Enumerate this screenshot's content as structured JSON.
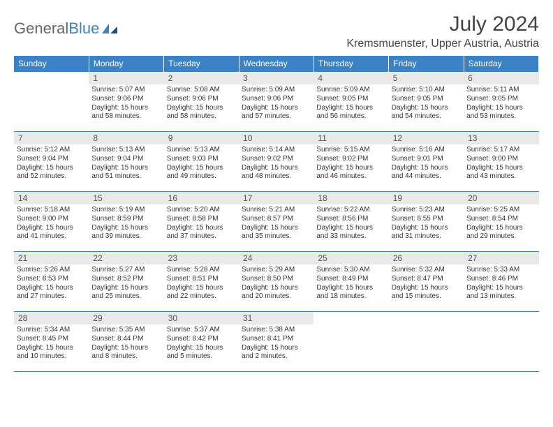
{
  "brand": {
    "part1": "General",
    "part2": "Blue",
    "accent": "#3b82c4"
  },
  "title": "July 2024",
  "location": "Kremsmuenster, Upper Austria, Austria",
  "header_bg": "#3b82c4",
  "daynum_bg": "#e9e9e9",
  "border_color": "#3b82c4",
  "weekdays": [
    "Sunday",
    "Monday",
    "Tuesday",
    "Wednesday",
    "Thursday",
    "Friday",
    "Saturday"
  ],
  "weeks": [
    [
      null,
      {
        "n": "1",
        "sr": "5:07 AM",
        "ss": "9:06 PM",
        "dl": "15 hours and 58 minutes."
      },
      {
        "n": "2",
        "sr": "5:08 AM",
        "ss": "9:06 PM",
        "dl": "15 hours and 58 minutes."
      },
      {
        "n": "3",
        "sr": "5:09 AM",
        "ss": "9:06 PM",
        "dl": "15 hours and 57 minutes."
      },
      {
        "n": "4",
        "sr": "5:09 AM",
        "ss": "9:05 PM",
        "dl": "15 hours and 56 minutes."
      },
      {
        "n": "5",
        "sr": "5:10 AM",
        "ss": "9:05 PM",
        "dl": "15 hours and 54 minutes."
      },
      {
        "n": "6",
        "sr": "5:11 AM",
        "ss": "9:05 PM",
        "dl": "15 hours and 53 minutes."
      }
    ],
    [
      {
        "n": "7",
        "sr": "5:12 AM",
        "ss": "9:04 PM",
        "dl": "15 hours and 52 minutes."
      },
      {
        "n": "8",
        "sr": "5:13 AM",
        "ss": "9:04 PM",
        "dl": "15 hours and 51 minutes."
      },
      {
        "n": "9",
        "sr": "5:13 AM",
        "ss": "9:03 PM",
        "dl": "15 hours and 49 minutes."
      },
      {
        "n": "10",
        "sr": "5:14 AM",
        "ss": "9:02 PM",
        "dl": "15 hours and 48 minutes."
      },
      {
        "n": "11",
        "sr": "5:15 AM",
        "ss": "9:02 PM",
        "dl": "15 hours and 46 minutes."
      },
      {
        "n": "12",
        "sr": "5:16 AM",
        "ss": "9:01 PM",
        "dl": "15 hours and 44 minutes."
      },
      {
        "n": "13",
        "sr": "5:17 AM",
        "ss": "9:00 PM",
        "dl": "15 hours and 43 minutes."
      }
    ],
    [
      {
        "n": "14",
        "sr": "5:18 AM",
        "ss": "9:00 PM",
        "dl": "15 hours and 41 minutes."
      },
      {
        "n": "15",
        "sr": "5:19 AM",
        "ss": "8:59 PM",
        "dl": "15 hours and 39 minutes."
      },
      {
        "n": "16",
        "sr": "5:20 AM",
        "ss": "8:58 PM",
        "dl": "15 hours and 37 minutes."
      },
      {
        "n": "17",
        "sr": "5:21 AM",
        "ss": "8:57 PM",
        "dl": "15 hours and 35 minutes."
      },
      {
        "n": "18",
        "sr": "5:22 AM",
        "ss": "8:56 PM",
        "dl": "15 hours and 33 minutes."
      },
      {
        "n": "19",
        "sr": "5:23 AM",
        "ss": "8:55 PM",
        "dl": "15 hours and 31 minutes."
      },
      {
        "n": "20",
        "sr": "5:25 AM",
        "ss": "8:54 PM",
        "dl": "15 hours and 29 minutes."
      }
    ],
    [
      {
        "n": "21",
        "sr": "5:26 AM",
        "ss": "8:53 PM",
        "dl": "15 hours and 27 minutes."
      },
      {
        "n": "22",
        "sr": "5:27 AM",
        "ss": "8:52 PM",
        "dl": "15 hours and 25 minutes."
      },
      {
        "n": "23",
        "sr": "5:28 AM",
        "ss": "8:51 PM",
        "dl": "15 hours and 22 minutes."
      },
      {
        "n": "24",
        "sr": "5:29 AM",
        "ss": "8:50 PM",
        "dl": "15 hours and 20 minutes."
      },
      {
        "n": "25",
        "sr": "5:30 AM",
        "ss": "8:49 PM",
        "dl": "15 hours and 18 minutes."
      },
      {
        "n": "26",
        "sr": "5:32 AM",
        "ss": "8:47 PM",
        "dl": "15 hours and 15 minutes."
      },
      {
        "n": "27",
        "sr": "5:33 AM",
        "ss": "8:46 PM",
        "dl": "15 hours and 13 minutes."
      }
    ],
    [
      {
        "n": "28",
        "sr": "5:34 AM",
        "ss": "8:45 PM",
        "dl": "15 hours and 10 minutes."
      },
      {
        "n": "29",
        "sr": "5:35 AM",
        "ss": "8:44 PM",
        "dl": "15 hours and 8 minutes."
      },
      {
        "n": "30",
        "sr": "5:37 AM",
        "ss": "8:42 PM",
        "dl": "15 hours and 5 minutes."
      },
      {
        "n": "31",
        "sr": "5:38 AM",
        "ss": "8:41 PM",
        "dl": "15 hours and 2 minutes."
      },
      null,
      null,
      null
    ]
  ],
  "labels": {
    "sunrise": "Sunrise:",
    "sunset": "Sunset:",
    "daylight": "Daylight:"
  }
}
